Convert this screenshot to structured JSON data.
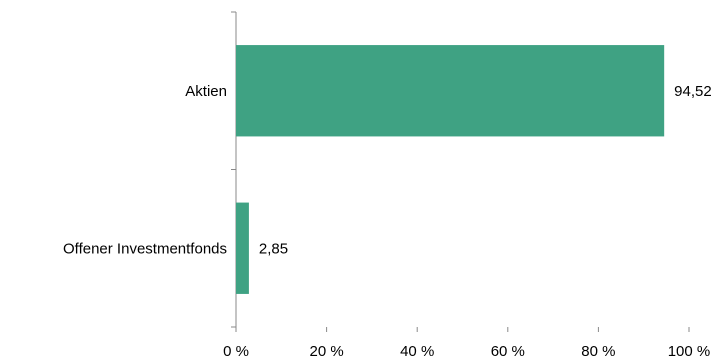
{
  "chart_data": {
    "type": "bar",
    "orientation": "horizontal",
    "categories": [
      "Aktien",
      "Offener Investmentfonds"
    ],
    "values": [
      94.52,
      2.85
    ],
    "data_labels": [
      "94,52",
      "2,85"
    ],
    "x_ticks": [
      0,
      20,
      40,
      60,
      80,
      100
    ],
    "x_tick_labels": [
      "0 %",
      "20 %",
      "40 %",
      "60 %",
      "80 %",
      "100 %"
    ],
    "xlim": [
      0,
      100
    ],
    "grid": false,
    "legend": "none",
    "bar_color": "#3fa283",
    "axis_color": "#888888"
  }
}
